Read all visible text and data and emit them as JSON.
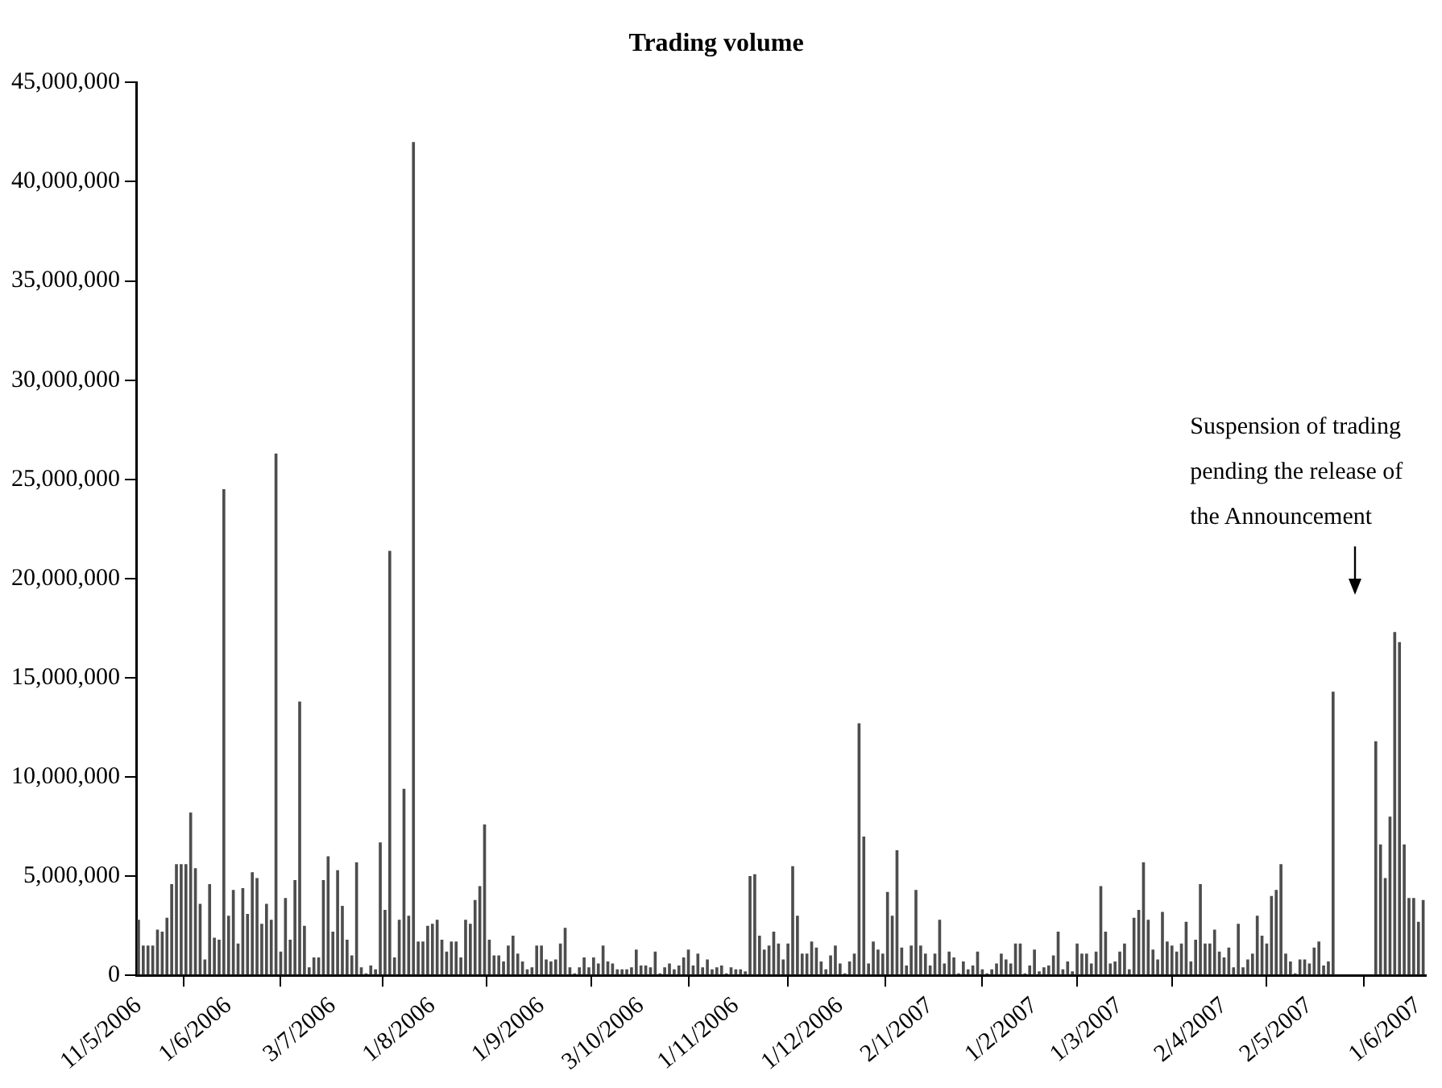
{
  "chart_data": {
    "type": "bar",
    "title": "Trading volume",
    "color": "#4d4d4d",
    "categories": [
      "11/5/2006",
      null,
      null,
      null,
      null,
      null,
      null,
      null,
      null,
      null,
      null,
      null,
      null,
      null,
      null,
      null,
      null,
      null,
      null,
      "1/6/2006",
      null,
      null,
      null,
      null,
      null,
      null,
      null,
      null,
      null,
      null,
      null,
      null,
      null,
      null,
      null,
      null,
      null,
      null,
      null,
      null,
      null,
      "3/7/2006",
      null,
      null,
      null,
      null,
      null,
      null,
      null,
      null,
      null,
      null,
      null,
      null,
      null,
      null,
      null,
      null,
      null,
      null,
      null,
      null,
      "1/8/2006",
      null,
      null,
      null,
      null,
      null,
      null,
      null,
      null,
      null,
      null,
      null,
      null,
      null,
      null,
      null,
      null,
      null,
      null,
      null,
      null,
      null,
      null,
      "1/9/2006",
      null,
      null,
      null,
      null,
      null,
      null,
      null,
      null,
      null,
      null,
      null,
      null,
      null,
      null,
      null,
      null,
      null,
      null,
      null,
      null,
      "3/10/2006",
      null,
      null,
      null,
      null,
      null,
      null,
      null,
      null,
      null,
      null,
      null,
      null,
      null,
      null,
      null,
      null,
      null,
      null,
      null,
      "1/11/2006",
      null,
      null,
      null,
      null,
      null,
      null,
      null,
      null,
      null,
      null,
      null,
      null,
      null,
      null,
      null,
      null,
      null,
      null,
      null,
      null,
      null,
      "1/12/2006",
      null,
      null,
      null,
      null,
      null,
      null,
      null,
      null,
      null,
      null,
      null,
      null,
      null,
      null,
      null,
      null,
      null,
      null,
      "2/1/2007",
      null,
      null,
      null,
      null,
      null,
      null,
      null,
      null,
      null,
      null,
      null,
      null,
      null,
      null,
      null,
      null,
      null,
      null,
      null,
      null,
      null,
      "1/2/2007",
      null,
      null,
      null,
      null,
      null,
      null,
      null,
      null,
      null,
      null,
      null,
      null,
      null,
      null,
      null,
      null,
      null,
      "1/3/2007",
      null,
      null,
      null,
      null,
      null,
      null,
      null,
      null,
      null,
      null,
      null,
      null,
      null,
      null,
      null,
      null,
      null,
      null,
      null,
      null,
      null,
      "2/4/2007",
      null,
      null,
      null,
      null,
      null,
      null,
      null,
      null,
      null,
      null,
      null,
      null,
      null,
      null,
      null,
      null,
      null,
      "2/5/2007",
      null,
      null,
      null,
      null,
      null,
      null,
      null,
      null,
      null,
      null,
      null,
      null,
      null,
      null,
      null,
      null,
      null,
      null,
      null,
      null,
      null,
      null,
      "1/6/2007",
      null
    ],
    "values": [
      2800000,
      1500000,
      1500000,
      1500000,
      2300000,
      2200000,
      2900000,
      4600000,
      5600000,
      5600000,
      5600000,
      8200000,
      5400000,
      3600000,
      800000,
      4600000,
      1900000,
      1800000,
      24500000,
      3000000,
      4300000,
      1600000,
      4400000,
      3100000,
      5200000,
      4900000,
      2600000,
      3600000,
      2800000,
      26300000,
      1200000,
      3900000,
      1800000,
      4800000,
      13800000,
      2500000,
      400000,
      900000,
      900000,
      4800000,
      6000000,
      2200000,
      5300000,
      3500000,
      1800000,
      1000000,
      5700000,
      400000,
      100000,
      500000,
      300000,
      6700000,
      3300000,
      21400000,
      900000,
      2800000,
      9400000,
      3000000,
      42000000,
      1700000,
      1700000,
      2500000,
      2600000,
      2800000,
      1800000,
      1200000,
      1700000,
      1700000,
      900000,
      2800000,
      2600000,
      3800000,
      4500000,
      7600000,
      1800000,
      1000000,
      1000000,
      700000,
      1500000,
      2000000,
      1100000,
      700000,
      300000,
      400000,
      1500000,
      1500000,
      800000,
      700000,
      800000,
      1600000,
      2400000,
      400000,
      100000,
      400000,
      900000,
      400000,
      900000,
      600000,
      1500000,
      700000,
      600000,
      300000,
      300000,
      300000,
      400000,
      1300000,
      500000,
      500000,
      400000,
      1200000,
      100000,
      400000,
      600000,
      300000,
      500000,
      900000,
      1300000,
      500000,
      1100000,
      400000,
      800000,
      300000,
      400000,
      500000,
      100000,
      400000,
      300000,
      300000,
      200000,
      5000000,
      5100000,
      2000000,
      1300000,
      1500000,
      2200000,
      1600000,
      800000,
      1600000,
      5500000,
      3000000,
      1100000,
      1100000,
      1700000,
      1400000,
      700000,
      300000,
      1000000,
      1500000,
      600000,
      100000,
      700000,
      1100000,
      12700000,
      7000000,
      600000,
      1700000,
      1300000,
      1100000,
      4200000,
      3000000,
      6300000,
      1400000,
      500000,
      1500000,
      4300000,
      1500000,
      1100000,
      500000,
      1100000,
      2800000,
      600000,
      1200000,
      900000,
      100000,
      700000,
      300000,
      500000,
      1200000,
      300000,
      100000,
      300000,
      600000,
      1100000,
      800000,
      600000,
      1600000,
      1600000,
      100000,
      500000,
      1300000,
      200000,
      400000,
      500000,
      1000000,
      2200000,
      300000,
      700000,
      200000,
      1600000,
      1100000,
      1100000,
      600000,
      1200000,
      4500000,
      2200000,
      600000,
      700000,
      1200000,
      1600000,
      300000,
      2900000,
      3300000,
      5700000,
      2800000,
      1300000,
      800000,
      3200000,
      1700000,
      1500000,
      1200000,
      1600000,
      2700000,
      700000,
      1800000,
      4600000,
      1600000,
      1600000,
      2300000,
      1200000,
      900000,
      1400000,
      400000,
      2600000,
      400000,
      800000,
      1100000,
      3000000,
      2000000,
      1600000,
      4000000,
      4300000,
      5600000,
      1100000,
      700000,
      100000,
      800000,
      800000,
      600000,
      1400000,
      1700000,
      500000,
      700000,
      14300000,
      null,
      null,
      null,
      null,
      null,
      null,
      null,
      null,
      11800000,
      6600000,
      4900000,
      8000000,
      17300000,
      16800000,
      6600000,
      3900000,
      3900000,
      2700000,
      3800000
    ],
    "ylim": [
      0,
      45000000
    ],
    "yticks": [
      {
        "value": 0,
        "label": "0"
      },
      {
        "value": 5000000,
        "label": "5,000,000"
      },
      {
        "value": 10000000,
        "label": "10,000,000"
      },
      {
        "value": 15000000,
        "label": "15,000,000"
      },
      {
        "value": 20000000,
        "label": "20,000,000"
      },
      {
        "value": 25000000,
        "label": "25,000,000"
      },
      {
        "value": 30000000,
        "label": "30,000,000"
      },
      {
        "value": 35000000,
        "label": "35,000,000"
      },
      {
        "value": 40000000,
        "label": "40,000,000"
      },
      {
        "value": 45000000,
        "label": "45,000,000"
      }
    ],
    "annotations": [
      "Suspension of trading pending the release of the Announcement"
    ]
  }
}
